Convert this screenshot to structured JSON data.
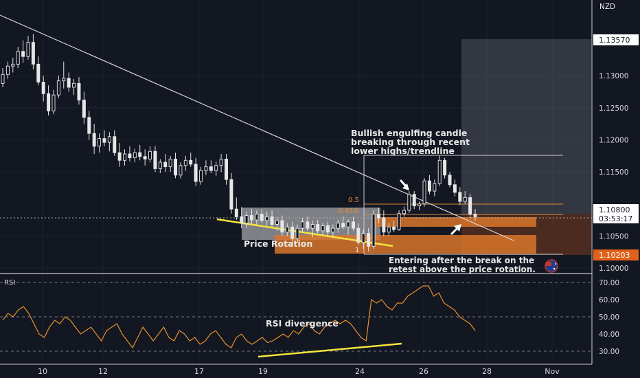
{
  "chart_data": [
    {
      "type": "candlestick",
      "instrument_currency": "NZD",
      "y_ticks": [
        "1.13000",
        "1.12500",
        "1.12000",
        "1.11500",
        "1.10500",
        "1.10000"
      ],
      "ylim": [
        1.0995,
        1.1375
      ],
      "x_ticks": [
        "10",
        "12",
        "17",
        "19",
        "24",
        "26",
        "28",
        "Nov"
      ],
      "price_labels": {
        "top": {
          "value": 1.1357,
          "text": "1.13570"
        },
        "current": {
          "value": 1.108,
          "text": "1.10800",
          "countdown": "03:53:17"
        },
        "bottom": {
          "value": 1.10203,
          "text": "1.10203"
        }
      },
      "fib_labels": {
        "half": "0.5",
        "golden": "0.618",
        "one": "1"
      },
      "annotations": {
        "bullish": [
          "Bullish engulfing candle",
          "breaking through recent",
          "lower highs/trendline"
        ],
        "rotation": "Price Rotation",
        "entry": [
          "Entering after the break on the",
          "retest above the price rotation."
        ]
      },
      "candles": [
        [
          1.1288,
          1.1312,
          1.1282,
          1.1302
        ],
        [
          1.1302,
          1.1322,
          1.1295,
          1.1315
        ],
        [
          1.1315,
          1.1328,
          1.1305,
          1.1318
        ],
        [
          1.1318,
          1.1345,
          1.1312,
          1.1338
        ],
        [
          1.1338,
          1.1355,
          1.132,
          1.133
        ],
        [
          1.133,
          1.1362,
          1.1325,
          1.1352
        ],
        [
          1.1352,
          1.1365,
          1.131,
          1.1318
        ],
        [
          1.1318,
          1.133,
          1.1285,
          1.129
        ],
        [
          1.129,
          1.13,
          1.126,
          1.1272
        ],
        [
          1.1272,
          1.1285,
          1.1238,
          1.1245
        ],
        [
          1.1245,
          1.1278,
          1.124,
          1.127
        ],
        [
          1.127,
          1.13,
          1.1265,
          1.1292
        ],
        [
          1.1292,
          1.1322,
          1.128,
          1.1296
        ],
        [
          1.1296,
          1.1305,
          1.1275,
          1.1282
        ],
        [
          1.1282,
          1.1295,
          1.127,
          1.1288
        ],
        [
          1.1288,
          1.1298,
          1.1255,
          1.1262
        ],
        [
          1.1262,
          1.1275,
          1.1225,
          1.1235
        ],
        [
          1.1235,
          1.1245,
          1.12,
          1.121
        ],
        [
          1.121,
          1.1225,
          1.1178,
          1.119
        ],
        [
          1.119,
          1.121,
          1.118,
          1.1202
        ],
        [
          1.1202,
          1.1215,
          1.119,
          1.1196
        ],
        [
          1.1196,
          1.1212,
          1.1182,
          1.1205
        ],
        [
          1.1205,
          1.1215,
          1.1175,
          1.118
        ],
        [
          1.118,
          1.1195,
          1.1158,
          1.1168
        ],
        [
          1.1168,
          1.1185,
          1.116,
          1.1178
        ],
        [
          1.1178,
          1.119,
          1.1166,
          1.1172
        ],
        [
          1.1172,
          1.1186,
          1.1165,
          1.118
        ],
        [
          1.118,
          1.1192,
          1.1168,
          1.1174
        ],
        [
          1.1174,
          1.1185,
          1.116,
          1.117
        ],
        [
          1.117,
          1.119,
          1.1165,
          1.1182
        ],
        [
          1.1182,
          1.119,
          1.115,
          1.1155
        ],
        [
          1.1155,
          1.117,
          1.1148,
          1.1165
        ],
        [
          1.1165,
          1.1178,
          1.115,
          1.1158
        ],
        [
          1.1158,
          1.1175,
          1.115,
          1.117
        ],
        [
          1.117,
          1.118,
          1.114,
          1.1145
        ],
        [
          1.1145,
          1.1165,
          1.114,
          1.116
        ],
        [
          1.116,
          1.1175,
          1.1152,
          1.1168
        ],
        [
          1.1168,
          1.118,
          1.1158,
          1.1162
        ],
        [
          1.1162,
          1.1172,
          1.1128,
          1.1135
        ],
        [
          1.1135,
          1.1158,
          1.113,
          1.1152
        ],
        [
          1.1152,
          1.1168,
          1.1145,
          1.1158
        ],
        [
          1.1158,
          1.1168,
          1.1148,
          1.1152
        ],
        [
          1.1152,
          1.1166,
          1.1144,
          1.116
        ],
        [
          1.116,
          1.1178,
          1.115,
          1.117
        ],
        [
          1.117,
          1.1178,
          1.113,
          1.1138
        ],
        [
          1.1138,
          1.1148,
          1.1085,
          1.1092
        ],
        [
          1.1092,
          1.111,
          1.1075,
          1.108
        ],
        [
          1.108,
          1.1095,
          1.1062,
          1.107
        ],
        [
          1.107,
          1.1088,
          1.1062,
          1.1082
        ],
        [
          1.1082,
          1.1092,
          1.1068,
          1.1075
        ],
        [
          1.1075,
          1.109,
          1.1068,
          1.1084
        ],
        [
          1.1084,
          1.1092,
          1.107,
          1.1074
        ],
        [
          1.1074,
          1.1088,
          1.1066,
          1.108
        ],
        [
          1.108,
          1.109,
          1.1064,
          1.1068
        ],
        [
          1.1068,
          1.108,
          1.1058,
          1.1074
        ],
        [
          1.1074,
          1.1082,
          1.105,
          1.1056
        ],
        [
          1.1056,
          1.107,
          1.105,
          1.1064
        ],
        [
          1.1064,
          1.1072,
          1.104,
          1.1046
        ],
        [
          1.1046,
          1.1068,
          1.104,
          1.1062
        ],
        [
          1.1062,
          1.1078,
          1.1056,
          1.1072
        ],
        [
          1.1072,
          1.108,
          1.1058,
          1.1062
        ],
        [
          1.1062,
          1.1074,
          1.1048,
          1.1068
        ],
        [
          1.1068,
          1.1075,
          1.1054,
          1.1058
        ],
        [
          1.1058,
          1.107,
          1.1052,
          1.1066
        ],
        [
          1.1066,
          1.1072,
          1.105,
          1.1056
        ],
        [
          1.1056,
          1.1068,
          1.1048,
          1.1062
        ],
        [
          1.1062,
          1.1075,
          1.1055,
          1.107
        ],
        [
          1.107,
          1.108,
          1.106,
          1.1064
        ],
        [
          1.1064,
          1.1076,
          1.1052,
          1.1072
        ],
        [
          1.1072,
          1.108,
          1.1058,
          1.1062
        ],
        [
          1.1062,
          1.107,
          1.1036,
          1.104
        ],
        [
          1.104,
          1.106,
          1.103,
          1.1054
        ],
        [
          1.1054,
          1.1062,
          1.1026,
          1.1034
        ],
        [
          1.1034,
          1.109,
          1.103,
          1.1084
        ],
        [
          1.1084,
          1.1094,
          1.107,
          1.1078
        ],
        [
          1.1078,
          1.109,
          1.105,
          1.1056
        ],
        [
          1.1056,
          1.107,
          1.105,
          1.1064
        ],
        [
          1.1064,
          1.1074,
          1.1056,
          1.106
        ],
        [
          1.106,
          1.109,
          1.1058,
          1.1085
        ],
        [
          1.1085,
          1.1096,
          1.108,
          1.109
        ],
        [
          1.109,
          1.112,
          1.1086,
          1.1115
        ],
        [
          1.1115,
          1.112,
          1.1092,
          1.1097
        ],
        [
          1.1097,
          1.1104,
          1.109,
          1.11
        ],
        [
          1.11,
          1.114,
          1.1096,
          1.1136
        ],
        [
          1.1136,
          1.1145,
          1.1115,
          1.112
        ],
        [
          1.112,
          1.1138,
          1.1112,
          1.1132
        ],
        [
          1.1132,
          1.1175,
          1.1128,
          1.1168
        ],
        [
          1.1168,
          1.1172,
          1.114,
          1.1145
        ],
        [
          1.1145,
          1.115,
          1.1126,
          1.113
        ],
        [
          1.113,
          1.1138,
          1.1112,
          1.1118
        ],
        [
          1.1118,
          1.1126,
          1.1098,
          1.1104
        ],
        [
          1.1104,
          1.112,
          1.11,
          1.111
        ],
        [
          1.111,
          1.1116,
          1.1078,
          1.1084
        ],
        [
          1.1084,
          1.1092,
          1.1074,
          1.108
        ]
      ],
      "rsi": {
        "label": "RSI",
        "ticks": [
          "70.00",
          "60.00",
          "50.00",
          "40.00",
          "30.00"
        ],
        "ylim": [
          22,
          75
        ],
        "bands": [
          70,
          50,
          30
        ],
        "annotation": "RSI divergence",
        "values": [
          48,
          52,
          50,
          54,
          56,
          52,
          46,
          40,
          38,
          44,
          48,
          46,
          50,
          48,
          44,
          40,
          42,
          44,
          40,
          36,
          42,
          44,
          46,
          40,
          36,
          32,
          38,
          44,
          40,
          36,
          40,
          44,
          38,
          36,
          42,
          40,
          36,
          38,
          34,
          36,
          40,
          42,
          38,
          34,
          32,
          38,
          40,
          36,
          34,
          36,
          38,
          35,
          36,
          38,
          40,
          38,
          42,
          40,
          44,
          46,
          42,
          40,
          44,
          46,
          48,
          46,
          48,
          46,
          42,
          38,
          36,
          60,
          58,
          60,
          56,
          54,
          58,
          58,
          62,
          64,
          66,
          68,
          68,
          62,
          64,
          58,
          56,
          54,
          50,
          48,
          46,
          42
        ],
        "rsi_x_left": 0,
        "rsi_x_right": 710
      }
    }
  ]
}
